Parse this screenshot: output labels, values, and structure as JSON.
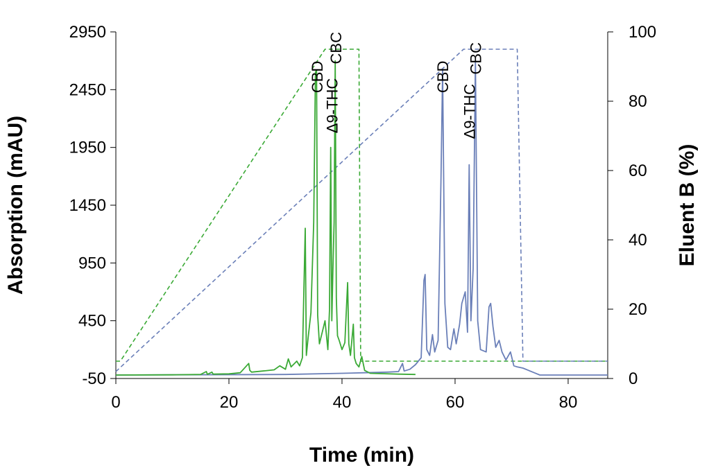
{
  "chart_data": {
    "type": "line",
    "title": "",
    "xlabel": "Time (min)",
    "ylabel_left": "Absorption (mAU)",
    "ylabel_right": "Eluent B (%)",
    "xlim": [
      0,
      87
    ],
    "ylim_left": [
      -50,
      2950
    ],
    "ylim_right": [
      0,
      100
    ],
    "x_ticks": [
      0,
      20,
      40,
      60,
      80
    ],
    "y_ticks_left": [
      -50,
      450,
      950,
      1450,
      1950,
      2450,
      2950
    ],
    "y_ticks_right": [
      0,
      20,
      40,
      60,
      80,
      100
    ],
    "grid": false,
    "colors": {
      "green": "#3aa935",
      "blue": "#6a7fb8"
    },
    "series": [
      {
        "key": "green-absorption",
        "axis": "left",
        "style": "solid",
        "color": "#3aa935",
        "x": [
          0,
          10,
          15,
          16,
          16.2,
          17,
          17.2,
          20,
          22,
          23.5,
          23.7,
          24,
          26,
          28,
          29,
          30,
          30.5,
          31,
          32,
          32.5,
          33,
          33.5,
          33.7,
          34,
          34.5,
          35,
          35.3,
          35.5,
          35.7,
          36,
          36.5,
          37,
          37.5,
          37.8,
          38,
          38.2,
          38.4,
          38.6,
          38.8,
          39,
          39.2,
          39.5,
          40,
          40.5,
          41,
          41.2,
          41.5,
          42,
          42.2,
          42.5,
          43,
          43.5,
          44,
          45,
          47,
          50,
          53
        ],
        "y": [
          -20,
          -18,
          -15,
          10,
          -14,
          5,
          -12,
          -10,
          0,
          80,
          20,
          5,
          15,
          25,
          60,
          30,
          120,
          50,
          100,
          60,
          130,
          1250,
          150,
          300,
          520,
          1300,
          2600,
          2620,
          500,
          250,
          350,
          450,
          200,
          550,
          1950,
          450,
          900,
          1300,
          2700,
          650,
          320,
          280,
          200,
          260,
          780,
          250,
          150,
          420,
          130,
          80,
          50,
          140,
          20,
          -5,
          -8,
          -12,
          -15
        ]
      },
      {
        "key": "blue-absorption",
        "axis": "left",
        "style": "solid",
        "color": "#6a7fb8",
        "x": [
          0,
          10,
          30,
          40,
          44,
          48,
          50,
          50.7,
          51,
          52,
          53,
          54,
          54.5,
          54.7,
          55,
          55.5,
          56,
          56.4,
          57,
          57.5,
          57.8,
          58.2,
          58.7,
          59.2,
          59.8,
          60.2,
          60.8,
          61.2,
          61.8,
          62.2,
          62.5,
          62.8,
          63.2,
          63.6,
          64,
          64.5,
          65.5,
          66,
          66.3,
          66.7,
          67.2,
          67.8,
          68.3,
          69,
          69.8,
          70.4,
          71,
          72,
          73,
          74,
          75,
          80,
          87
        ],
        "y": [
          -20,
          -18,
          -15,
          -5,
          0,
          5,
          10,
          80,
          15,
          30,
          70,
          130,
          800,
          850,
          200,
          150,
          330,
          180,
          280,
          1650,
          2620,
          600,
          220,
          200,
          380,
          250,
          420,
          600,
          700,
          350,
          1800,
          450,
          900,
          2700,
          450,
          200,
          180,
          570,
          600,
          400,
          220,
          280,
          180,
          110,
          180,
          60,
          50,
          40,
          20,
          0,
          -20,
          -20,
          -20
        ]
      },
      {
        "key": "green-eluent",
        "axis": "right",
        "style": "dashed",
        "color": "#3aa935",
        "x": [
          0,
          0.8,
          37,
          43,
          43.3,
          87
        ],
        "y": [
          5,
          5,
          95,
          95,
          5,
          5
        ]
      },
      {
        "key": "blue-eluent",
        "axis": "right",
        "style": "dashed",
        "color": "#6a7fb8",
        "x": [
          0,
          61.5,
          71,
          72,
          87
        ],
        "y": [
          2,
          95,
          95,
          5,
          5
        ]
      }
    ],
    "annotations": [
      {
        "text": "CBD",
        "x": 35.6,
        "y": 2700
      },
      {
        "text": "CBC",
        "x": 38.9,
        "y": 2950
      },
      {
        "text": "Δ9-THC",
        "x": 38.2,
        "y": 2550
      },
      {
        "text": "CBD",
        "x": 57.8,
        "y": 2700
      },
      {
        "text": "CBC",
        "x": 63.6,
        "y": 2860
      },
      {
        "text": "Δ9-THC",
        "x": 62.5,
        "y": 2500
      }
    ]
  }
}
